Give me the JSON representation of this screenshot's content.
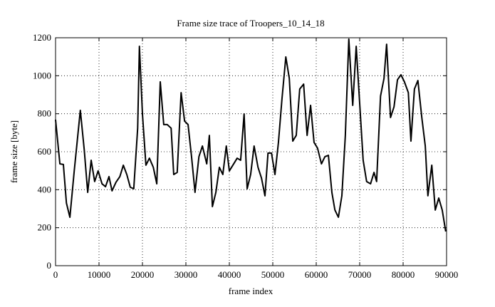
{
  "chart_data": {
    "type": "line",
    "title": "Frame size trace of Troopers_10_14_18",
    "xlabel": "frame index",
    "ylabel": "frame size [byte]",
    "xlim": [
      0,
      90000
    ],
    "ylim": [
      0,
      1200
    ],
    "xticks": [
      0,
      10000,
      20000,
      30000,
      40000,
      50000,
      60000,
      70000,
      80000,
      90000
    ],
    "yticks": [
      0,
      200,
      400,
      600,
      800,
      1000,
      1200
    ],
    "grid": true,
    "series": [
      {
        "color": "#000000",
        "x": [
          0,
          1000,
          1800,
          2500,
          3300,
          4300,
          5700,
          6600,
          7400,
          8200,
          9000,
          9800,
          10700,
          11500,
          12300,
          13000,
          13900,
          14800,
          15600,
          16400,
          17200,
          18000,
          18900,
          19300,
          20000,
          20800,
          21600,
          22500,
          23300,
          24100,
          24900,
          25700,
          26600,
          27200,
          28000,
          28900,
          29700,
          30500,
          31300,
          32100,
          33000,
          33800,
          34800,
          35400,
          36100,
          36900,
          37700,
          38500,
          39300,
          40000,
          41000,
          41800,
          42600,
          43400,
          44100,
          44900,
          45700,
          46600,
          47400,
          48200,
          48900,
          49700,
          50500,
          51300,
          52100,
          53000,
          53800,
          54600,
          55400,
          56200,
          57100,
          57900,
          58700,
          59500,
          60300,
          61200,
          62000,
          62800,
          63600,
          64300,
          65100,
          65900,
          66700,
          67500,
          68400,
          69200,
          70000,
          70800,
          71600,
          72500,
          73300,
          73900,
          74800,
          75600,
          76200,
          77100,
          77900,
          78700,
          79500,
          80300,
          81200,
          81800,
          82600,
          83400,
          84300,
          85100,
          85700,
          86600,
          87400,
          88200,
          89000,
          89800
        ],
        "values": [
          769,
          536,
          533,
          330,
          255,
          499,
          818,
          611,
          386,
          555,
          443,
          499,
          431,
          416,
          469,
          394,
          439,
          469,
          529,
          480,
          413,
          405,
          724,
          1155,
          799,
          529,
          566,
          518,
          431,
          968,
          743,
          743,
          724,
          480,
          491,
          911,
          761,
          743,
          574,
          386,
          574,
          630,
          536,
          686,
          311,
          386,
          518,
          480,
          630,
          499,
          536,
          566,
          555,
          799,
          405,
          480,
          630,
          518,
          461,
          368,
          593,
          593,
          480,
          649,
          874,
          1099,
          986,
          656,
          686,
          930,
          956,
          686,
          844,
          649,
          619,
          536,
          574,
          581,
          386,
          293,
          255,
          368,
          686,
          1193,
          844,
          1155,
          855,
          555,
          443,
          431,
          491,
          443,
          893,
          986,
          1166,
          780,
          836,
          979,
          1005,
          968,
          911,
          656,
          930,
          975,
          780,
          630,
          368,
          529,
          293,
          356,
          293,
          180
        ]
      }
    ]
  }
}
